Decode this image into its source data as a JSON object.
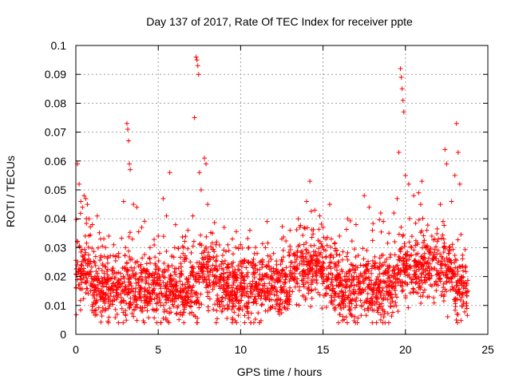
{
  "chart_data": {
    "type": "scatter",
    "title": "Day 137 of 2017, Rate Of TEC Index for receiver ppte",
    "xlabel": "GPS time / hours",
    "ylabel": "ROTI / TECUs",
    "xlim": [
      0,
      25
    ],
    "ylim": [
      0,
      0.1
    ],
    "x_ticks": [
      "0",
      "5",
      "10",
      "15",
      "20",
      "25"
    ],
    "y_ticks": [
      "0",
      "0.01",
      "0.02",
      "0.03",
      "0.04",
      "0.05",
      "0.06",
      "0.07",
      "0.08",
      "0.09",
      "0.1"
    ],
    "grid": true,
    "marker": "+",
    "marker_color": "#ff0000",
    "series_description_points": [
      [
        0.1,
        0.059
      ],
      [
        0.2,
        0.052
      ],
      [
        0.3,
        0.046
      ],
      [
        0.4,
        0.044
      ],
      [
        0.5,
        0.048
      ],
      [
        0.6,
        0.047
      ],
      [
        0.7,
        0.045
      ],
      [
        0.8,
        0.04
      ],
      [
        1.0,
        0.038
      ],
      [
        1.3,
        0.041
      ],
      [
        1.5,
        0.033
      ],
      [
        1.8,
        0.03
      ],
      [
        2.0,
        0.034
      ],
      [
        2.3,
        0.031
      ],
      [
        2.6,
        0.028
      ],
      [
        2.9,
        0.046
      ],
      [
        3.1,
        0.073
      ],
      [
        3.15,
        0.071
      ],
      [
        3.2,
        0.067
      ],
      [
        3.25,
        0.059
      ],
      [
        3.3,
        0.057
      ],
      [
        3.5,
        0.045
      ],
      [
        3.7,
        0.044
      ],
      [
        4.0,
        0.037
      ],
      [
        4.5,
        0.03
      ],
      [
        5.0,
        0.034
      ],
      [
        5.3,
        0.047
      ],
      [
        5.5,
        0.041
      ],
      [
        5.7,
        0.056
      ],
      [
        6.0,
        0.03
      ],
      [
        6.5,
        0.028
      ],
      [
        6.8,
        0.036
      ],
      [
        7.1,
        0.041
      ],
      [
        7.2,
        0.075
      ],
      [
        7.3,
        0.096
      ],
      [
        7.35,
        0.095
      ],
      [
        7.4,
        0.093
      ],
      [
        7.45,
        0.09
      ],
      [
        7.5,
        0.056
      ],
      [
        7.6,
        0.05
      ],
      [
        7.8,
        0.061
      ],
      [
        7.9,
        0.059
      ],
      [
        8.0,
        0.045
      ],
      [
        8.5,
        0.031
      ],
      [
        9.0,
        0.037
      ],
      [
        9.5,
        0.033
      ],
      [
        10.0,
        0.031
      ],
      [
        10.5,
        0.03
      ],
      [
        11.0,
        0.028
      ],
      [
        11.5,
        0.03
      ],
      [
        12.0,
        0.028
      ],
      [
        12.5,
        0.033
      ],
      [
        13.0,
        0.036
      ],
      [
        13.5,
        0.04
      ],
      [
        14.0,
        0.046
      ],
      [
        14.2,
        0.053
      ],
      [
        14.5,
        0.043
      ],
      [
        14.8,
        0.041
      ],
      [
        15.0,
        0.037
      ],
      [
        15.5,
        0.033
      ],
      [
        16.0,
        0.034
      ],
      [
        16.5,
        0.04
      ],
      [
        17.0,
        0.038
      ],
      [
        17.5,
        0.048
      ],
      [
        17.8,
        0.044
      ],
      [
        18.0,
        0.036
      ],
      [
        18.5,
        0.042
      ],
      [
        19.0,
        0.035
      ],
      [
        19.3,
        0.042
      ],
      [
        19.5,
        0.047
      ],
      [
        19.6,
        0.063
      ],
      [
        19.7,
        0.092
      ],
      [
        19.75,
        0.089
      ],
      [
        19.8,
        0.085
      ],
      [
        19.85,
        0.081
      ],
      [
        19.9,
        0.077
      ],
      [
        20.0,
        0.055
      ],
      [
        20.2,
        0.052
      ],
      [
        20.5,
        0.048
      ],
      [
        20.8,
        0.049
      ],
      [
        21.0,
        0.053
      ],
      [
        21.3,
        0.036
      ],
      [
        21.6,
        0.034
      ],
      [
        22.0,
        0.033
      ],
      [
        22.4,
        0.064
      ],
      [
        22.5,
        0.059
      ],
      [
        22.8,
        0.046
      ],
      [
        23.0,
        0.055
      ],
      [
        23.1,
        0.073
      ],
      [
        23.2,
        0.063
      ],
      [
        23.3,
        0.052
      ],
      [
        23.5,
        0.022
      ],
      [
        23.8,
        0.015
      ]
    ]
  }
}
